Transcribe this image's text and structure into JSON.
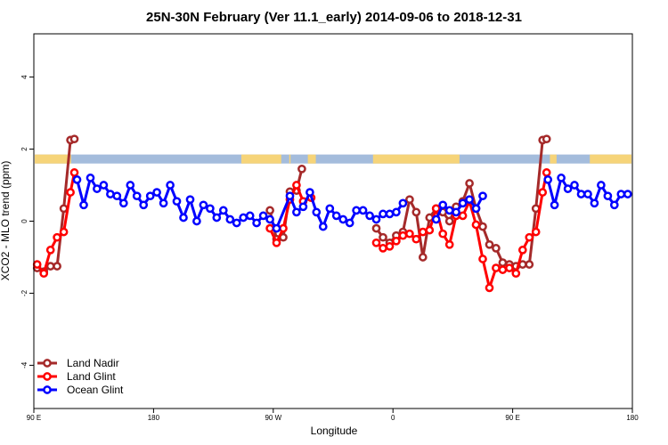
{
  "chart_data": {
    "type": "line",
    "title": "25N-30N February (Ver 11.1_early)   2014-09-06 to 2018-12-31",
    "xlabel": "Longitude",
    "ylabel": "XCO2 - MLO trend (ppm)",
    "xlim": [
      90,
      540
    ],
    "ylim": [
      -5.2,
      5.2
    ],
    "x_ticks": [
      {
        "value": 90,
        "label": "90 E"
      },
      {
        "value": 180,
        "label": "180"
      },
      {
        "value": 270,
        "label": "90 W"
      },
      {
        "value": 360,
        "label": "0"
      },
      {
        "value": 450,
        "label": "90 E"
      },
      {
        "value": 540,
        "label": "180"
      }
    ],
    "y_ticks": [
      {
        "value": -4,
        "label": "-4"
      },
      {
        "value": -2,
        "label": "-2"
      },
      {
        "value": 0,
        "label": "0"
      },
      {
        "value": 2,
        "label": "2"
      },
      {
        "value": 4,
        "label": "4"
      }
    ],
    "grid": false,
    "legend_position": "bottom-left",
    "land_ocean_strip": {
      "y_range": [
        1.6,
        1.85
      ],
      "ocean_color": "#a4bcdc",
      "land_color": "#f6d479",
      "land_spans": [
        [
          90,
          118
        ],
        [
          246,
          276
        ],
        [
          282,
          283
        ],
        [
          296,
          302
        ],
        [
          345,
          410
        ],
        [
          478,
          483
        ],
        [
          508,
          540
        ]
      ]
    },
    "series": [
      {
        "name": "Land Nadir",
        "color": "#a52a2a",
        "segments": [
          [
            [
              92.5,
              -1.3
            ],
            [
              97.5,
              -1.4
            ],
            [
              102.5,
              -1.25
            ],
            [
              107.5,
              -1.25
            ],
            [
              112.5,
              0.35
            ],
            [
              117.5,
              2.25
            ],
            [
              120.5,
              2.28
            ]
          ],
          [
            [
              267.5,
              0.3
            ],
            [
              272.5,
              -0.5
            ],
            [
              277.5,
              -0.45
            ],
            [
              282.5,
              0.82
            ],
            [
              287.5,
              0.85
            ],
            [
              291.5,
              1.45
            ]
          ],
          [
            [
              347.5,
              -0.2
            ],
            [
              352.5,
              -0.45
            ],
            [
              357.5,
              -0.6
            ],
            [
              362.5,
              -0.4
            ],
            [
              367.5,
              -0.3
            ],
            [
              372.5,
              0.6
            ],
            [
              377.5,
              0.25
            ],
            [
              382.5,
              -1.0
            ],
            [
              387.5,
              0.1
            ],
            [
              392.5,
              0.35
            ],
            [
              397.5,
              0.25
            ],
            [
              402.5,
              0.0
            ],
            [
              407.5,
              0.4
            ],
            [
              412.5,
              0.55
            ],
            [
              417.5,
              1.05
            ],
            [
              422.5,
              0.35
            ],
            [
              427.5,
              -0.15
            ],
            [
              432.5,
              -0.65
            ],
            [
              437.5,
              -0.75
            ],
            [
              442.5,
              -1.15
            ],
            [
              447.5,
              -1.2
            ],
            [
              452.5,
              -1.25
            ],
            [
              457.5,
              -1.2
            ],
            [
              462.5,
              -1.2
            ],
            [
              467.5,
              0.35
            ],
            [
              472.5,
              2.25
            ],
            [
              475.5,
              2.28
            ]
          ]
        ]
      },
      {
        "name": "Land Glint",
        "color": "#ff0000",
        "segments": [
          [
            [
              92.5,
              -1.2
            ],
            [
              97.5,
              -1.45
            ],
            [
              102.5,
              -0.8
            ],
            [
              107.5,
              -0.45
            ],
            [
              112.5,
              -0.3
            ],
            [
              117.5,
              0.8
            ],
            [
              120.5,
              1.35
            ]
          ],
          [
            [
              267.5,
              -0.2
            ],
            [
              272.5,
              -0.6
            ],
            [
              277.5,
              -0.2
            ],
            [
              282.5,
              0.6
            ],
            [
              287.5,
              1.0
            ],
            [
              292.5,
              0.55
            ],
            [
              298.5,
              0.65
            ]
          ],
          [
            [
              347.5,
              -0.6
            ],
            [
              352.5,
              -0.75
            ],
            [
              357.5,
              -0.7
            ],
            [
              362.5,
              -0.55
            ],
            [
              367.5,
              -0.4
            ],
            [
              372.5,
              -0.35
            ],
            [
              377.5,
              -0.5
            ],
            [
              382.5,
              -0.3
            ],
            [
              387.5,
              -0.25
            ],
            [
              392.5,
              0.35
            ],
            [
              397.5,
              -0.35
            ],
            [
              402.5,
              -0.65
            ],
            [
              407.5,
              0.15
            ],
            [
              412.5,
              0.15
            ],
            [
              417.5,
              0.55
            ],
            [
              422.5,
              -0.1
            ],
            [
              427.5,
              -1.05
            ],
            [
              432.5,
              -1.85
            ],
            [
              437.5,
              -1.3
            ],
            [
              442.5,
              -1.35
            ],
            [
              447.5,
              -1.3
            ],
            [
              452.5,
              -1.45
            ],
            [
              457.5,
              -0.8
            ],
            [
              462.5,
              -0.45
            ],
            [
              467.5,
              -0.3
            ],
            [
              472.5,
              0.8
            ],
            [
              475.5,
              1.35
            ]
          ]
        ]
      },
      {
        "name": "Ocean Glint",
        "color": "#0000ff",
        "segments": [
          [
            [
              122.5,
              1.15
            ],
            [
              127.5,
              0.45
            ],
            [
              132.5,
              1.2
            ],
            [
              137.5,
              0.9
            ],
            [
              142.5,
              1.0
            ],
            [
              147.5,
              0.75
            ],
            [
              152.5,
              0.7
            ],
            [
              157.5,
              0.5
            ],
            [
              162.5,
              1.0
            ],
            [
              167.5,
              0.7
            ],
            [
              172.5,
              0.45
            ],
            [
              177.5,
              0.7
            ],
            [
              182.5,
              0.8
            ],
            [
              187.5,
              0.5
            ],
            [
              192.5,
              1.0
            ],
            [
              197.5,
              0.55
            ],
            [
              202.5,
              0.1
            ],
            [
              207.5,
              0.6
            ],
            [
              212.5,
              0.0
            ],
            [
              217.5,
              0.45
            ],
            [
              222.5,
              0.35
            ],
            [
              227.5,
              0.1
            ],
            [
              232.5,
              0.3
            ],
            [
              237.5,
              0.05
            ],
            [
              242.5,
              -0.05
            ],
            [
              247.5,
              0.1
            ],
            [
              252.5,
              0.15
            ],
            [
              257.5,
              -0.05
            ],
            [
              262.5,
              0.15
            ],
            [
              267.5,
              0.05
            ],
            [
              272.5,
              -0.2
            ],
            [
              282.5,
              0.7
            ],
            [
              287.5,
              0.25
            ],
            [
              292.5,
              0.4
            ],
            [
              297.5,
              0.8
            ],
            [
              302.5,
              0.25
            ],
            [
              307.5,
              -0.15
            ],
            [
              312.5,
              0.35
            ],
            [
              317.5,
              0.15
            ],
            [
              322.5,
              0.05
            ],
            [
              327.5,
              -0.05
            ],
            [
              332.5,
              0.3
            ],
            [
              337.5,
              0.3
            ],
            [
              342.5,
              0.15
            ],
            [
              347.5,
              0.05
            ],
            [
              352.5,
              0.2
            ],
            [
              357.5,
              0.2
            ],
            [
              362.5,
              0.25
            ],
            [
              367.5,
              0.5
            ]
          ],
          [
            [
              392.5,
              0.05
            ],
            [
              397.5,
              0.45
            ],
            [
              402.5,
              0.3
            ],
            [
              407.5,
              0.25
            ],
            [
              412.5,
              0.5
            ],
            [
              417.5,
              0.6
            ],
            [
              422.5,
              0.35
            ],
            [
              427.5,
              0.7
            ]
          ],
          [
            [
              476.5,
              1.15
            ],
            [
              481.5,
              0.45
            ],
            [
              486.5,
              1.2
            ],
            [
              491.5,
              0.9
            ],
            [
              496.5,
              1.0
            ],
            [
              501.5,
              0.75
            ],
            [
              506.5,
              0.75
            ],
            [
              511.5,
              0.5
            ],
            [
              516.5,
              1.0
            ],
            [
              521.5,
              0.7
            ],
            [
              526.5,
              0.45
            ],
            [
              531.5,
              0.75
            ],
            [
              536.5,
              0.75
            ]
          ]
        ]
      }
    ]
  }
}
